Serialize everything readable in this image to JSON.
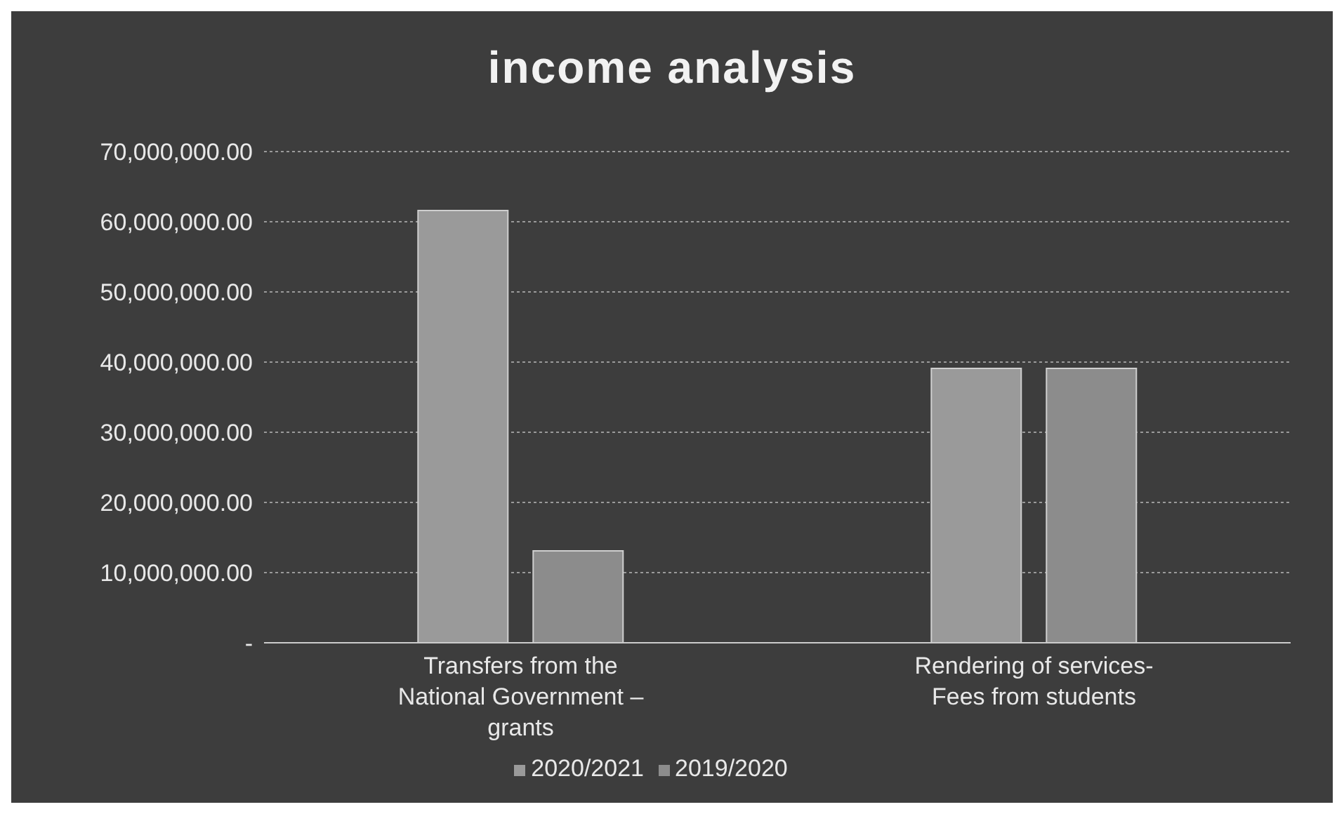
{
  "chart_data": {
    "type": "bar",
    "title": "income analysis",
    "categories": [
      "Transfers from the National Government – grants",
      "Rendering of services- Fees from students"
    ],
    "series": [
      {
        "name": "2020/2021",
        "color": "#9a9a9a",
        "values": [
          61600000,
          39100000
        ]
      },
      {
        "name": "2019/2020",
        "color": "#8c8c8c",
        "values": [
          13100000,
          39100000
        ]
      }
    ],
    "ylim": [
      0,
      70000000
    ],
    "yticks": [
      {
        "value": 0,
        "label": "-"
      },
      {
        "value": 10000000,
        "label": "10,000,000.00"
      },
      {
        "value": 20000000,
        "label": "20,000,000.00"
      },
      {
        "value": 30000000,
        "label": "30,000,000.00"
      },
      {
        "value": 40000000,
        "label": "40,000,000.00"
      },
      {
        "value": 50000000,
        "label": "50,000,000.00"
      },
      {
        "value": 60000000,
        "label": "60,000,000.00"
      },
      {
        "value": 70000000,
        "label": "70,000,000.00"
      }
    ],
    "grid": "y",
    "legend": "bottom"
  }
}
